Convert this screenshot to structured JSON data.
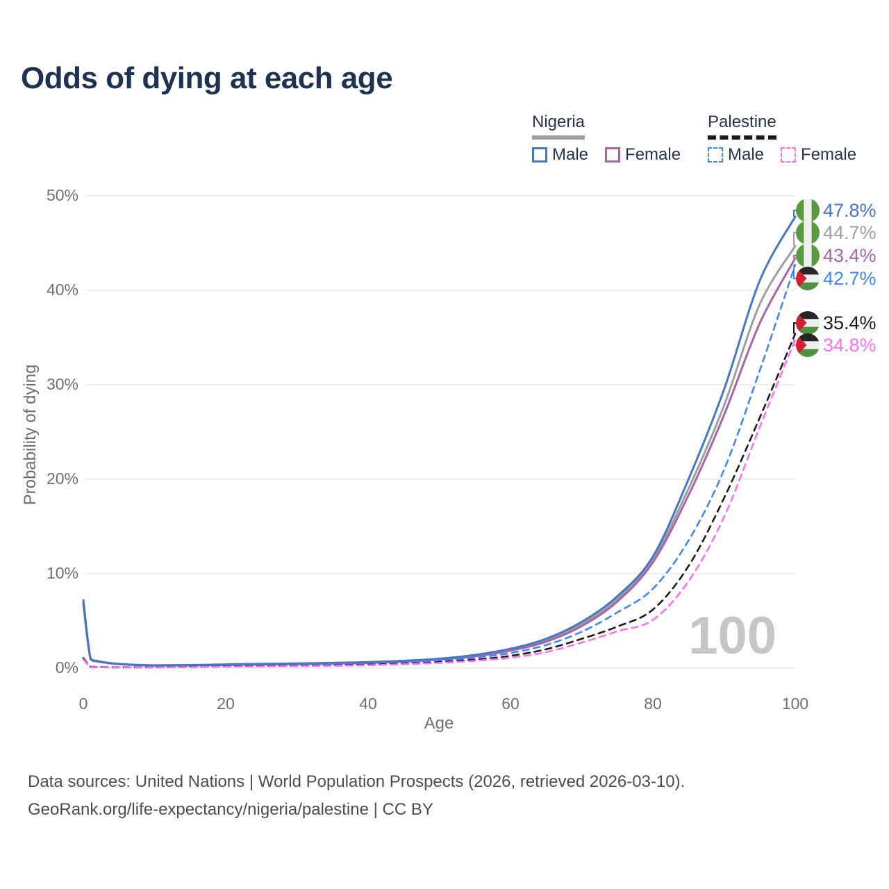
{
  "page": {
    "title": "Odds of dying at each age",
    "watermark": "100",
    "footer_line1": "Data sources: United Nations | World Population Prospects (2026, retrieved 2026-03-10).",
    "footer_line2": "GeoRank.org/life-expectancy/nigeria/palestine | CC BY"
  },
  "legend": {
    "position": "top-right",
    "groups": [
      {
        "name": "Nigeria",
        "line_style": "solid",
        "line_color": "#9e9e9e",
        "items": [
          {
            "label": "Male",
            "color": "#4577c4"
          },
          {
            "label": "Female",
            "color": "#a864a8"
          }
        ]
      },
      {
        "name": "Palestine",
        "line_style": "dashed",
        "line_color": "#1a1a1a",
        "items": [
          {
            "label": "Male",
            "color": "#4287f5"
          },
          {
            "label": "Female",
            "color": "#ff70f0"
          }
        ]
      }
    ]
  },
  "chart_data": {
    "type": "line",
    "title": "Odds of dying at each age",
    "xlabel": "Age",
    "ylabel": "Probability of dying",
    "x_range": [
      0,
      100
    ],
    "y_range": [
      0,
      50
    ],
    "x_ticks": [
      0,
      20,
      40,
      60,
      80,
      100
    ],
    "y_tick_values": [
      0,
      10,
      20,
      30,
      40,
      50
    ],
    "y_tick_labels": [
      "0%",
      "10%",
      "20%",
      "30%",
      "40%",
      "50%"
    ],
    "grid": "horizontal",
    "series": [
      {
        "id": "nigeria-male",
        "name": "Nigeria Male",
        "country": "Nigeria",
        "sex": "male",
        "color": "#4577c4",
        "dash": false,
        "end_label": "47.8%",
        "points": [
          [
            0,
            7.2
          ],
          [
            1,
            1.05
          ],
          [
            2,
            0.75
          ],
          [
            5,
            0.45
          ],
          [
            10,
            0.3
          ],
          [
            15,
            0.33
          ],
          [
            20,
            0.4
          ],
          [
            25,
            0.45
          ],
          [
            30,
            0.5
          ],
          [
            35,
            0.56
          ],
          [
            40,
            0.64
          ],
          [
            45,
            0.78
          ],
          [
            50,
            1.0
          ],
          [
            55,
            1.4
          ],
          [
            60,
            2.05
          ],
          [
            65,
            3.1
          ],
          [
            70,
            4.9
          ],
          [
            75,
            7.6
          ],
          [
            80,
            11.8
          ],
          [
            85,
            20.0
          ],
          [
            90,
            29.5
          ],
          [
            95,
            41.0
          ],
          [
            100,
            47.8
          ]
        ]
      },
      {
        "id": "nigeria-all",
        "name": "Nigeria",
        "country": "Nigeria",
        "sex": "all",
        "color": "#9e9e9e",
        "dash": false,
        "end_label": "44.7%",
        "points": [
          [
            0,
            7.0
          ],
          [
            1,
            1.0
          ],
          [
            2,
            0.73
          ],
          [
            5,
            0.44
          ],
          [
            10,
            0.29
          ],
          [
            15,
            0.31
          ],
          [
            20,
            0.37
          ],
          [
            25,
            0.42
          ],
          [
            30,
            0.47
          ],
          [
            35,
            0.52
          ],
          [
            40,
            0.6
          ],
          [
            45,
            0.73
          ],
          [
            50,
            0.95
          ],
          [
            55,
            1.32
          ],
          [
            60,
            1.95
          ],
          [
            65,
            2.95
          ],
          [
            70,
            4.65
          ],
          [
            75,
            7.3
          ],
          [
            80,
            11.5
          ],
          [
            85,
            19.0
          ],
          [
            90,
            27.8
          ],
          [
            95,
            38.5
          ],
          [
            100,
            44.7
          ]
        ]
      },
      {
        "id": "nigeria-female",
        "name": "Nigeria Female",
        "country": "Nigeria",
        "sex": "female",
        "color": "#a864a8",
        "dash": false,
        "end_label": "43.4%",
        "points": [
          [
            0,
            6.75
          ],
          [
            1,
            0.95
          ],
          [
            2,
            0.7
          ],
          [
            5,
            0.43
          ],
          [
            10,
            0.28
          ],
          [
            15,
            0.29
          ],
          [
            20,
            0.34
          ],
          [
            25,
            0.38
          ],
          [
            30,
            0.43
          ],
          [
            35,
            0.48
          ],
          [
            40,
            0.55
          ],
          [
            45,
            0.68
          ],
          [
            50,
            0.9
          ],
          [
            55,
            1.25
          ],
          [
            60,
            1.85
          ],
          [
            65,
            2.8
          ],
          [
            70,
            4.45
          ],
          [
            75,
            7.05
          ],
          [
            80,
            11.2
          ],
          [
            85,
            18.3
          ],
          [
            90,
            26.8
          ],
          [
            95,
            36.5
          ],
          [
            100,
            43.4
          ]
        ]
      },
      {
        "id": "palestine-male",
        "name": "Palestine Male",
        "country": "Palestine",
        "sex": "male",
        "color": "#4287f5",
        "dash": true,
        "end_label": "42.7%",
        "points": [
          [
            0,
            1.1
          ],
          [
            1,
            0.16
          ],
          [
            2,
            0.13
          ],
          [
            5,
            0.1
          ],
          [
            10,
            0.11
          ],
          [
            15,
            0.16
          ],
          [
            20,
            0.23
          ],
          [
            25,
            0.27
          ],
          [
            30,
            0.31
          ],
          [
            35,
            0.36
          ],
          [
            40,
            0.44
          ],
          [
            45,
            0.57
          ],
          [
            50,
            0.78
          ],
          [
            55,
            1.1
          ],
          [
            60,
            1.6
          ],
          [
            65,
            2.45
          ],
          [
            70,
            3.85
          ],
          [
            75,
            5.9
          ],
          [
            80,
            8.4
          ],
          [
            85,
            13.5
          ],
          [
            90,
            21.0
          ],
          [
            95,
            31.5
          ],
          [
            100,
            42.7
          ]
        ]
      },
      {
        "id": "palestine-all",
        "name": "Palestine",
        "country": "Palestine",
        "sex": "all",
        "color": "#1a1a1a",
        "dash": true,
        "end_label": "35.4%",
        "points": [
          [
            0,
            1.0
          ],
          [
            1,
            0.14
          ],
          [
            2,
            0.11
          ],
          [
            5,
            0.09
          ],
          [
            10,
            0.09
          ],
          [
            15,
            0.13
          ],
          [
            20,
            0.18
          ],
          [
            25,
            0.21
          ],
          [
            30,
            0.25
          ],
          [
            35,
            0.29
          ],
          [
            40,
            0.36
          ],
          [
            45,
            0.47
          ],
          [
            50,
            0.64
          ],
          [
            55,
            0.9
          ],
          [
            60,
            1.3
          ],
          [
            65,
            2.0
          ],
          [
            70,
            3.1
          ],
          [
            75,
            4.4
          ],
          [
            80,
            6.2
          ],
          [
            85,
            10.8
          ],
          [
            90,
            18.0
          ],
          [
            95,
            26.5
          ],
          [
            100,
            35.4
          ]
        ]
      },
      {
        "id": "palestine-female",
        "name": "Palestine Female",
        "country": "Palestine",
        "sex": "female",
        "color": "#ff70f0",
        "dash": true,
        "end_label": "34.8%",
        "points": [
          [
            0,
            0.92
          ],
          [
            1,
            0.12
          ],
          [
            2,
            0.1
          ],
          [
            5,
            0.08
          ],
          [
            10,
            0.08
          ],
          [
            15,
            0.11
          ],
          [
            20,
            0.15
          ],
          [
            25,
            0.18
          ],
          [
            30,
            0.21
          ],
          [
            35,
            0.25
          ],
          [
            40,
            0.31
          ],
          [
            45,
            0.41
          ],
          [
            50,
            0.56
          ],
          [
            55,
            0.78
          ],
          [
            60,
            1.1
          ],
          [
            65,
            1.7
          ],
          [
            70,
            2.7
          ],
          [
            75,
            3.9
          ],
          [
            80,
            5.1
          ],
          [
            85,
            9.2
          ],
          [
            90,
            16.0
          ],
          [
            95,
            25.5
          ],
          [
            100,
            34.8
          ]
        ]
      }
    ]
  }
}
